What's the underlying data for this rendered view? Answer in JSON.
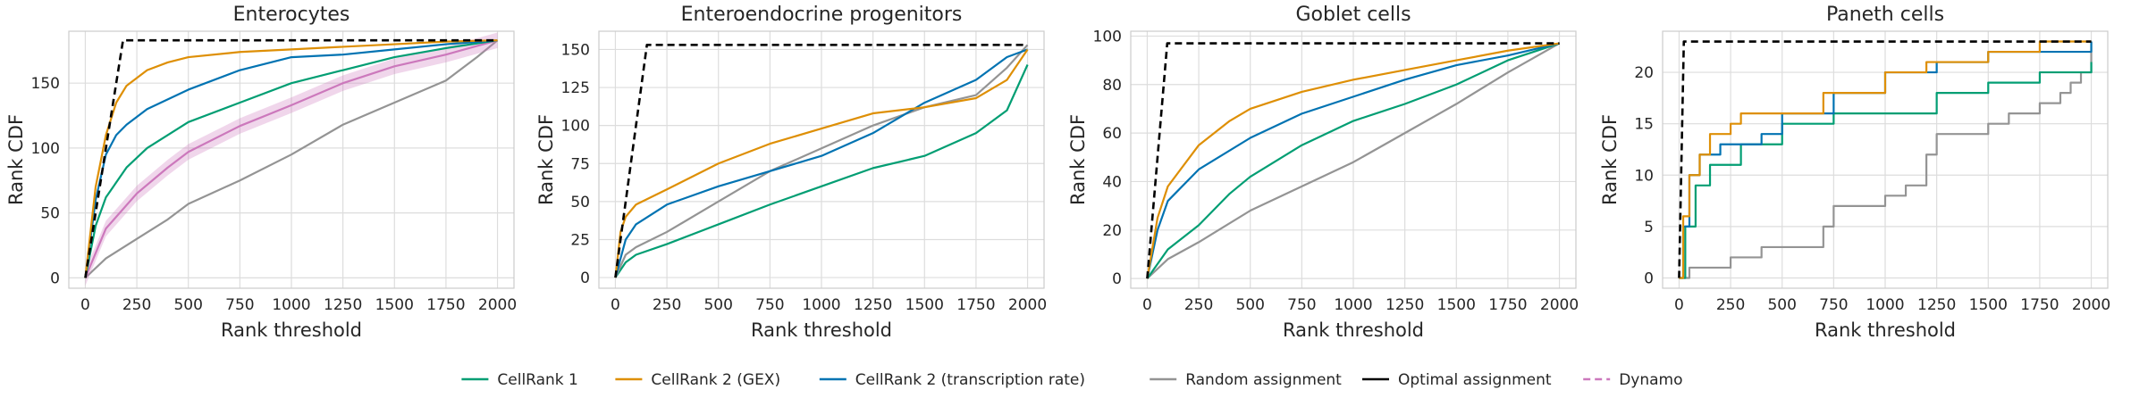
{
  "colors": {
    "cellrank1": "#029e73",
    "gex": "#de8f05",
    "trate": "#0173b2",
    "random": "#949494",
    "optimal": "#000000",
    "dynamo": "#cc78bc",
    "grid": "#dddddd",
    "frame": "#cccccc"
  },
  "legend": {
    "placement": "bottom-center",
    "entries": [
      {
        "key": "cellrank1",
        "label": "CellRank 1",
        "dashed": false
      },
      {
        "key": "gex",
        "label": "CellRank 2 (GEX)",
        "dashed": false
      },
      {
        "key": "trate",
        "label": "CellRank 2 (transcription rate)",
        "dashed": false
      },
      {
        "key": "random",
        "label": "Random assignment",
        "dashed": false
      },
      {
        "key": "optimal",
        "label": "Optimal assignment",
        "dashed": true
      },
      {
        "key": "dynamo",
        "label": "Dynamo",
        "dashed": true
      }
    ]
  },
  "chart_data": [
    {
      "type": "line",
      "title": "Enterocytes",
      "xlabel": "Rank threshold",
      "ylabel": "Rank CDF",
      "xlim": [
        -80,
        2080
      ],
      "ylim": [
        -8,
        190
      ],
      "xticks": [
        0,
        250,
        500,
        750,
        1000,
        1250,
        1500,
        1750,
        2000
      ],
      "yticks": [
        0,
        50,
        100,
        150
      ],
      "grid": true,
      "series": [
        {
          "key": "random",
          "x": [
            0,
            100,
            250,
            400,
            500,
            750,
            1000,
            1250,
            1500,
            1750,
            1900,
            2000
          ],
          "y": [
            0,
            15,
            30,
            45,
            57,
            75,
            95,
            118,
            135,
            152,
            170,
            183
          ]
        },
        {
          "key": "dynamo",
          "band": 6,
          "x": [
            0,
            100,
            250,
            400,
            500,
            750,
            1000,
            1250,
            1500,
            1750,
            2000
          ],
          "y": [
            0,
            38,
            65,
            85,
            97,
            117,
            133,
            150,
            163,
            172,
            183
          ]
        },
        {
          "key": "cellrank1",
          "x": [
            0,
            50,
            100,
            200,
            300,
            500,
            750,
            1000,
            1250,
            1500,
            1750,
            2000
          ],
          "y": [
            0,
            40,
            62,
            85,
            100,
            120,
            135,
            150,
            160,
            170,
            177,
            183
          ]
        },
        {
          "key": "trate",
          "x": [
            0,
            50,
            100,
            150,
            200,
            300,
            500,
            750,
            1000,
            1250,
            1500,
            1750,
            2000
          ],
          "y": [
            0,
            60,
            95,
            110,
            118,
            130,
            145,
            160,
            170,
            172,
            176,
            180,
            183
          ]
        },
        {
          "key": "gex",
          "x": [
            0,
            50,
            100,
            150,
            200,
            300,
            400,
            500,
            750,
            1000,
            1250,
            1500,
            1750,
            2000
          ],
          "y": [
            0,
            70,
            110,
            135,
            148,
            160,
            166,
            170,
            174,
            176,
            178,
            180,
            182,
            183
          ]
        },
        {
          "key": "optimal",
          "dashed": true,
          "x": [
            0,
            183,
            2000
          ],
          "y": [
            0,
            183,
            183
          ]
        }
      ]
    },
    {
      "type": "line",
      "title": "Enteroendocrine progenitors",
      "xlabel": "Rank threshold",
      "ylabel": "Rank CDF",
      "xlim": [
        -80,
        2080
      ],
      "ylim": [
        -7,
        162
      ],
      "xticks": [
        0,
        250,
        500,
        750,
        1000,
        1250,
        1500,
        1750,
        2000
      ],
      "yticks": [
        0,
        25,
        50,
        75,
        100,
        125,
        150
      ],
      "grid": true,
      "series": [
        {
          "key": "cellrank1",
          "x": [
            0,
            50,
            100,
            250,
            500,
            750,
            1000,
            1250,
            1500,
            1750,
            1900,
            2000
          ],
          "y": [
            0,
            10,
            15,
            22,
            35,
            48,
            60,
            72,
            80,
            95,
            110,
            140
          ]
        },
        {
          "key": "random",
          "x": [
            0,
            50,
            100,
            250,
            500,
            750,
            1000,
            1250,
            1500,
            1750,
            1900,
            2000
          ],
          "y": [
            0,
            15,
            20,
            30,
            50,
            70,
            85,
            100,
            112,
            120,
            138,
            153
          ]
        },
        {
          "key": "trate",
          "x": [
            0,
            50,
            100,
            250,
            500,
            750,
            1000,
            1250,
            1500,
            1750,
            1900,
            2000
          ],
          "y": [
            0,
            25,
            35,
            48,
            60,
            70,
            80,
            95,
            115,
            130,
            145,
            150
          ]
        },
        {
          "key": "gex",
          "x": [
            0,
            25,
            50,
            100,
            250,
            500,
            750,
            1000,
            1250,
            1500,
            1750,
            1900,
            2000
          ],
          "y": [
            0,
            30,
            40,
            48,
            58,
            75,
            88,
            98,
            108,
            112,
            118,
            130,
            150
          ]
        },
        {
          "key": "optimal",
          "dashed": true,
          "x": [
            0,
            153,
            2000
          ],
          "y": [
            0,
            153,
            153
          ]
        }
      ]
    },
    {
      "type": "line",
      "title": "Goblet cells",
      "xlabel": "Rank threshold",
      "ylabel": "Rank CDF",
      "xlim": [
        -80,
        2080
      ],
      "ylim": [
        -4,
        102
      ],
      "xticks": [
        0,
        250,
        500,
        750,
        1000,
        1250,
        1500,
        1750,
        2000
      ],
      "yticks": [
        0,
        20,
        40,
        60,
        80,
        100
      ],
      "grid": true,
      "series": [
        {
          "key": "random",
          "x": [
            0,
            100,
            250,
            500,
            750,
            1000,
            1250,
            1500,
            1750,
            2000
          ],
          "y": [
            0,
            8,
            15,
            28,
            38,
            48,
            60,
            72,
            85,
            97
          ]
        },
        {
          "key": "cellrank1",
          "x": [
            0,
            100,
            250,
            400,
            500,
            750,
            1000,
            1250,
            1500,
            1750,
            2000
          ],
          "y": [
            0,
            12,
            22,
            35,
            42,
            55,
            65,
            72,
            80,
            90,
            97
          ]
        },
        {
          "key": "trate",
          "x": [
            0,
            50,
            100,
            250,
            500,
            750,
            1000,
            1250,
            1500,
            1750,
            2000
          ],
          "y": [
            0,
            20,
            32,
            45,
            58,
            68,
            75,
            82,
            88,
            92,
            97
          ]
        },
        {
          "key": "gex",
          "x": [
            0,
            50,
            100,
            250,
            400,
            500,
            750,
            1000,
            1250,
            1500,
            1750,
            2000
          ],
          "y": [
            0,
            25,
            38,
            55,
            65,
            70,
            77,
            82,
            86,
            90,
            94,
            97
          ]
        },
        {
          "key": "optimal",
          "dashed": true,
          "x": [
            0,
            97,
            2000
          ],
          "y": [
            0,
            97,
            97
          ]
        }
      ]
    },
    {
      "type": "line",
      "title": "Paneth cells",
      "xlabel": "Rank threshold",
      "ylabel": "Rank CDF",
      "xlim": [
        -80,
        2080
      ],
      "ylim": [
        -1,
        24
      ],
      "xticks": [
        0,
        250,
        500,
        750,
        1000,
        1250,
        1500,
        1750,
        2000
      ],
      "yticks": [
        0,
        5,
        10,
        15,
        20
      ],
      "grid": true,
      "series": [
        {
          "key": "random",
          "step": true,
          "x": [
            0,
            50,
            250,
            400,
            700,
            750,
            1000,
            1100,
            1200,
            1250,
            1500,
            1600,
            1750,
            1850,
            1900,
            1950,
            2000
          ],
          "y": [
            0,
            1,
            2,
            3,
            5,
            7,
            8,
            9,
            12,
            14,
            15,
            16,
            17,
            18,
            19,
            20,
            23
          ]
        },
        {
          "key": "cellrank1",
          "step": true,
          "x": [
            0,
            30,
            80,
            150,
            300,
            500,
            750,
            1250,
            1500,
            1750,
            2000
          ],
          "y": [
            0,
            5,
            9,
            11,
            13,
            15,
            16,
            18,
            19,
            20,
            21
          ]
        },
        {
          "key": "trate",
          "step": true,
          "x": [
            0,
            20,
            50,
            100,
            200,
            400,
            500,
            750,
            1000,
            1250,
            1500,
            1750,
            2000
          ],
          "y": [
            0,
            5,
            10,
            12,
            13,
            14,
            16,
            18,
            20,
            21,
            22,
            22,
            23
          ]
        },
        {
          "key": "gex",
          "step": true,
          "x": [
            0,
            20,
            50,
            100,
            150,
            250,
            300,
            400,
            700,
            1000,
            1200,
            1500,
            1750,
            2000
          ],
          "y": [
            0,
            6,
            10,
            12,
            14,
            15,
            16,
            16,
            18,
            20,
            21,
            22,
            23,
            23
          ]
        },
        {
          "key": "optimal",
          "dashed": true,
          "x": [
            0,
            23,
            2000
          ],
          "y": [
            0,
            23,
            23
          ]
        }
      ]
    }
  ]
}
